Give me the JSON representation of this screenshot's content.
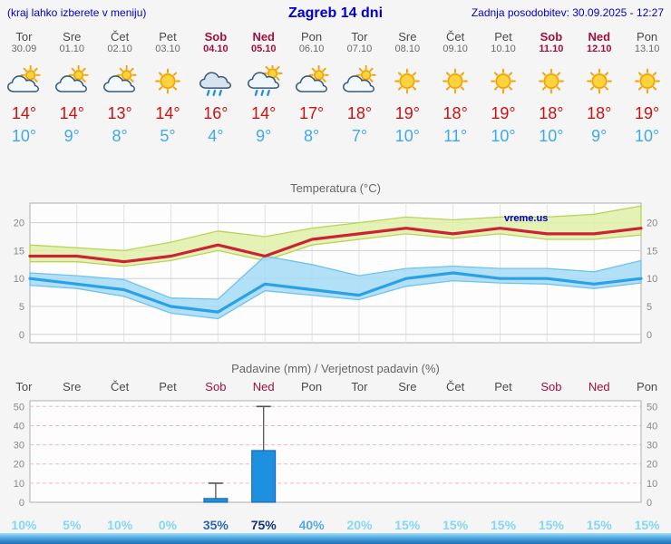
{
  "header": {
    "left_note": "(kraj lahko izberete v meniju)",
    "title": "Zagreb 14 dni",
    "updated": "Zadnja posodobitev: 30.09.2025 - 12:27"
  },
  "colors": {
    "header_text": "#0000cc",
    "weekend_text": "#a1103c",
    "weekday_text": "#4a4a4a",
    "tmax_text": "#cc1111",
    "tmin_text": "#3fa9e8",
    "prob_low": "#85d6f2",
    "prob_mid": "#2a66b0",
    "prob_mid_light": "#55a8dc",
    "prob_high": "#123377",
    "bar_blue": "#1e90e0"
  },
  "days": [
    {
      "name": "Tor",
      "date": "30.09",
      "weekend": false,
      "icon": "cloud-sun-icon",
      "tmax": "14°",
      "tmin": "10°",
      "prob": "10%",
      "prob_color": "#85d6f2"
    },
    {
      "name": "Sre",
      "date": "01.10",
      "weekend": false,
      "icon": "cloud-sun-icon",
      "tmax": "14°",
      "tmin": "9°",
      "prob": "5%",
      "prob_color": "#85d6f2"
    },
    {
      "name": "Čet",
      "date": "02.10",
      "weekend": false,
      "icon": "cloud-sun-icon",
      "tmax": "13°",
      "tmin": "8°",
      "prob": "10%",
      "prob_color": "#85d6f2"
    },
    {
      "name": "Pet",
      "date": "03.10",
      "weekend": false,
      "icon": "sun-icon",
      "tmax": "14°",
      "tmin": "5°",
      "prob": "0%",
      "prob_color": "#85d6f2"
    },
    {
      "name": "Sob",
      "date": "04.10",
      "weekend": true,
      "icon": "rain-icon",
      "tmax": "16°",
      "tmin": "4°",
      "prob": "35%",
      "prob_color": "#2a66b0"
    },
    {
      "name": "Ned",
      "date": "05.10",
      "weekend": true,
      "icon": "sun-rain-icon",
      "tmax": "14°",
      "tmin": "9°",
      "prob": "75%",
      "prob_color": "#123377"
    },
    {
      "name": "Pon",
      "date": "06.10",
      "weekend": false,
      "icon": "cloud-sun-icon",
      "tmax": "17°",
      "tmin": "8°",
      "prob": "40%",
      "prob_color": "#55a8dc"
    },
    {
      "name": "Tor",
      "date": "07.10",
      "weekend": false,
      "icon": "cloud-sun-icon",
      "tmax": "18°",
      "tmin": "7°",
      "prob": "20%",
      "prob_color": "#85d6f2"
    },
    {
      "name": "Sre",
      "date": "08.10",
      "weekend": false,
      "icon": "sun-icon",
      "tmax": "19°",
      "tmin": "10°",
      "prob": "15%",
      "prob_color": "#85d6f2"
    },
    {
      "name": "Čet",
      "date": "09.10",
      "weekend": false,
      "icon": "sun-icon",
      "tmax": "18°",
      "tmin": "11°",
      "prob": "15%",
      "prob_color": "#85d6f2"
    },
    {
      "name": "Pet",
      "date": "10.10",
      "weekend": false,
      "icon": "sun-icon",
      "tmax": "19°",
      "tmin": "10°",
      "prob": "15%",
      "prob_color": "#85d6f2"
    },
    {
      "name": "Sob",
      "date": "11.10",
      "weekend": true,
      "icon": "sun-icon",
      "tmax": "18°",
      "tmin": "10°",
      "prob": "15%",
      "prob_color": "#85d6f2"
    },
    {
      "name": "Ned",
      "date": "12.10",
      "weekend": true,
      "icon": "sun-icon",
      "tmax": "18°",
      "tmin": "9°",
      "prob": "15%",
      "prob_color": "#85d6f2"
    },
    {
      "name": "Pon",
      "date": "13.10",
      "weekend": false,
      "icon": "sun-icon",
      "tmax": "19°",
      "tmin": "10°",
      "prob": "15%",
      "prob_color": "#85d6f2"
    }
  ],
  "chart_data": [
    {
      "type": "line",
      "title": "Temperatura (°C)",
      "x_categories": [
        "Tor",
        "Sre",
        "Čet",
        "Pet",
        "Sob",
        "Ned",
        "Pon",
        "Tor",
        "Sre",
        "Čet",
        "Pet",
        "Sob",
        "Ned",
        "Pon"
      ],
      "ylim": [
        -1.5,
        23.5
      ],
      "y_ticks": [
        0,
        5,
        10,
        15,
        20
      ],
      "grid": true,
      "watermark": "vreme.us",
      "series": [
        {
          "name": "max-temperature",
          "color": "#cc2233",
          "band_color": "#dff0a8",
          "band_edge": "#b9d458",
          "values": [
            14,
            14,
            13,
            14,
            16,
            14,
            17,
            18,
            19,
            18,
            19,
            18,
            18,
            19
          ],
          "band_upper": [
            16,
            15.5,
            15,
            16.5,
            18.5,
            17.5,
            19,
            20,
            21,
            20.5,
            21,
            21,
            21.5,
            23
          ],
          "band_lower": [
            13,
            13,
            12.2,
            13.2,
            15,
            13.2,
            16,
            17,
            18,
            17.2,
            18,
            17,
            17,
            17.8
          ]
        },
        {
          "name": "min-temperature",
          "color": "#2aa1e6",
          "band_color": "#a5daf6",
          "band_edge": "#6fc2ee",
          "values": [
            10,
            9,
            8,
            5,
            4,
            9,
            8,
            7,
            10,
            11,
            10,
            10,
            9,
            10
          ],
          "band_upper": [
            11,
            10.5,
            9.8,
            6.5,
            6.3,
            14,
            12.5,
            10.5,
            11.8,
            12.2,
            11.8,
            11.8,
            11.2,
            13.2
          ],
          "band_lower": [
            8.8,
            8.2,
            6.8,
            3.8,
            2.8,
            7.8,
            7,
            6.2,
            8.6,
            9.6,
            9.2,
            9,
            8.2,
            9.2
          ]
        }
      ]
    },
    {
      "type": "bar",
      "title": "Padavine (mm) / Verjetnost padavin (%)",
      "x_categories": [
        "Tor",
        "Sre",
        "Čet",
        "Pet",
        "Sob",
        "Ned",
        "Pon",
        "Tor",
        "Sre",
        "Čet",
        "Pet",
        "Sob",
        "Ned",
        "Pon"
      ],
      "ylim": [
        0,
        53
      ],
      "y_ticks": [
        0,
        10,
        20,
        30,
        40,
        50
      ],
      "bar_color": "#1e90e0",
      "values": [
        0,
        0,
        0,
        0,
        2,
        27,
        0,
        0,
        0,
        0,
        0,
        0,
        0,
        0
      ],
      "whisker_high": [
        0,
        0,
        0,
        0,
        10,
        50,
        0,
        0,
        0,
        0,
        0,
        0,
        0,
        0
      ],
      "probabilities": [
        "10%",
        "5%",
        "10%",
        "0%",
        "35%",
        "75%",
        "40%",
        "20%",
        "15%",
        "15%",
        "15%",
        "15%",
        "15%",
        "15%"
      ]
    }
  ]
}
